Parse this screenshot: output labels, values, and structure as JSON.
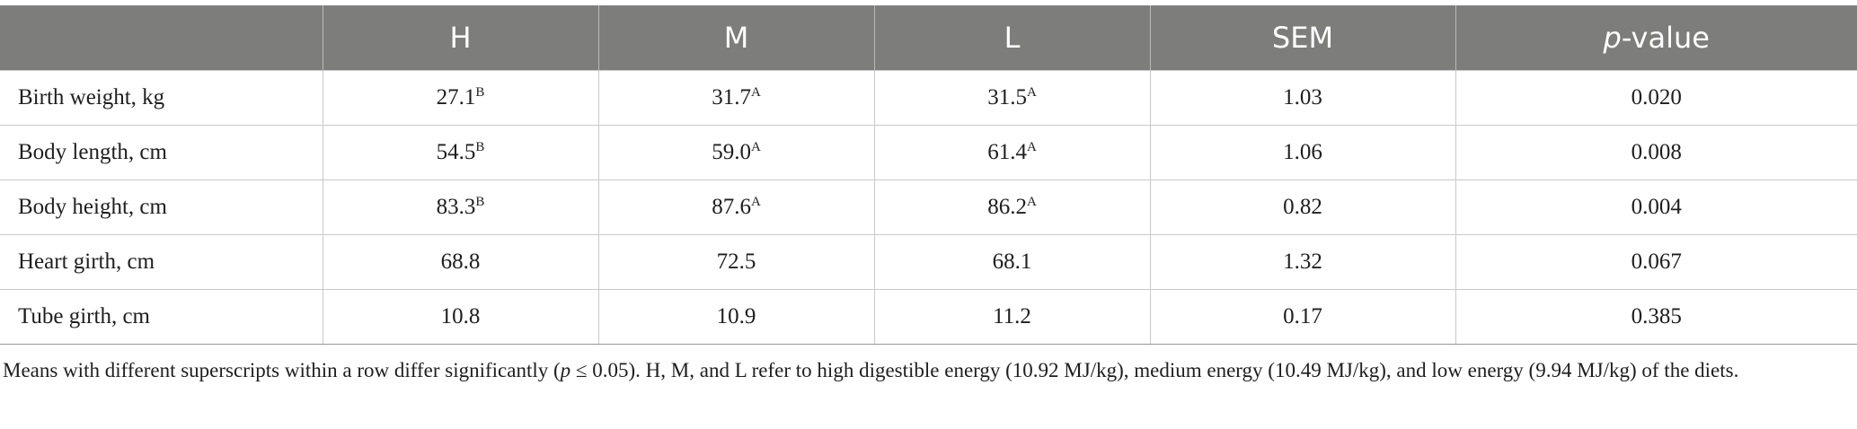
{
  "table": {
    "columns": {
      "stub": "",
      "h": "H",
      "m": "M",
      "l": "L",
      "sem": "SEM",
      "p_prefix": "p",
      "p_suffix": "-value"
    },
    "rows": [
      {
        "label": "Birth weight, kg",
        "h": "27.1",
        "h_sup": "B",
        "m": "31.7",
        "m_sup": "A",
        "l": "31.5",
        "l_sup": "A",
        "sem": "1.03",
        "p": "0.020"
      },
      {
        "label": "Body length, cm",
        "h": "54.5",
        "h_sup": "B",
        "m": "59.0",
        "m_sup": "A",
        "l": "61.4",
        "l_sup": "A",
        "sem": "1.06",
        "p": "0.008"
      },
      {
        "label": "Body height, cm",
        "h": "83.3",
        "h_sup": "B",
        "m": "87.6",
        "m_sup": "A",
        "l": "86.2",
        "l_sup": "A",
        "sem": "0.82",
        "p": "0.004"
      },
      {
        "label": "Heart girth, cm",
        "h": "68.8",
        "h_sup": "",
        "m": "72.5",
        "m_sup": "",
        "l": "68.1",
        "l_sup": "",
        "sem": "1.32",
        "p": "0.067"
      },
      {
        "label": "Tube girth, cm",
        "h": "10.8",
        "h_sup": "",
        "m": "10.9",
        "m_sup": "",
        "l": "11.2",
        "l_sup": "",
        "sem": "0.17",
        "p": "0.385"
      }
    ]
  },
  "footnote": {
    "part1": "Means with different superscripts within a row differ significantly (",
    "p_symbol": "p",
    "part2": " ≤ 0.05). H, M, and L refer to high digestible energy (10.92 MJ/kg), medium energy (10.49 MJ/kg), and low energy (9.94 MJ/kg) of the diets."
  },
  "colors": {
    "header_bg": "#7d7e7c",
    "header_text": "#ffffff",
    "grid": "#c9c9c9",
    "body_text": "#1e1e1e"
  }
}
